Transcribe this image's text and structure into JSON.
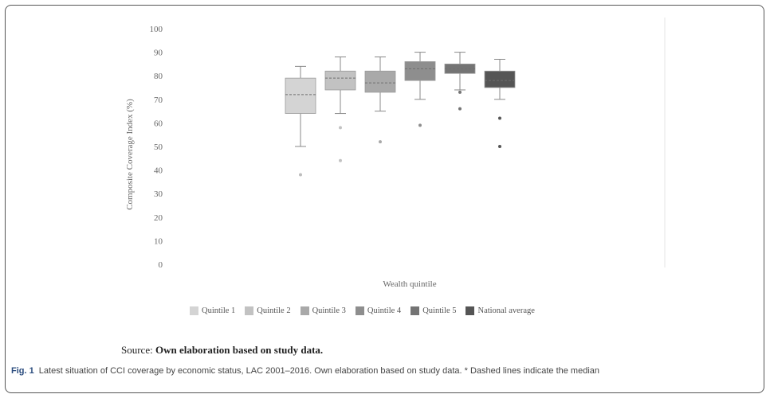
{
  "chart_data": {
    "type": "box",
    "xlabel": "Wealth quintile",
    "ylabel": "Composite Coverage Index (%)",
    "ylim": [
      0,
      100
    ],
    "yticks": [
      0,
      10,
      20,
      30,
      40,
      50,
      60,
      70,
      80,
      90,
      100
    ],
    "legend_position": "bottom",
    "series": [
      {
        "name": "Quintile 1",
        "color": "#d4d4d4",
        "whisker_low": 50,
        "q1": 64,
        "median": 72,
        "q3": 79,
        "whisker_high": 84,
        "outliers": [
          38
        ]
      },
      {
        "name": "Quintile 2",
        "color": "#c2c2c2",
        "whisker_low": 64,
        "q1": 74,
        "median": 79,
        "q3": 82,
        "whisker_high": 88,
        "outliers": [
          58,
          44
        ]
      },
      {
        "name": "Quintile 3",
        "color": "#a9a9a9",
        "whisker_low": 65,
        "q1": 73,
        "median": 77,
        "q3": 82,
        "whisker_high": 88,
        "outliers": [
          52
        ]
      },
      {
        "name": "Quintile 4",
        "color": "#8e8e8e",
        "whisker_low": 70,
        "q1": 78,
        "median": 83,
        "q3": 86,
        "whisker_high": 90,
        "outliers": [
          59
        ]
      },
      {
        "name": "Quintile 5",
        "color": "#747474",
        "whisker_low": 74,
        "q1": 81,
        "median": 83,
        "q3": 85,
        "whisker_high": 90,
        "outliers": [
          73,
          66
        ]
      },
      {
        "name": "National average",
        "color": "#555555",
        "whisker_low": 70,
        "q1": 75,
        "median": 78,
        "q3": 82,
        "whisker_high": 87,
        "outliers": [
          62,
          50
        ]
      }
    ]
  },
  "source_prefix": "Source: ",
  "source_bold": "Own elaboration based on study data.",
  "caption": {
    "fig_label": "Fig. 1",
    "text": "Latest situation of CCI coverage by economic status, LAC 2001–2016. Own elaboration based on study data. * Dashed lines indicate the median"
  }
}
